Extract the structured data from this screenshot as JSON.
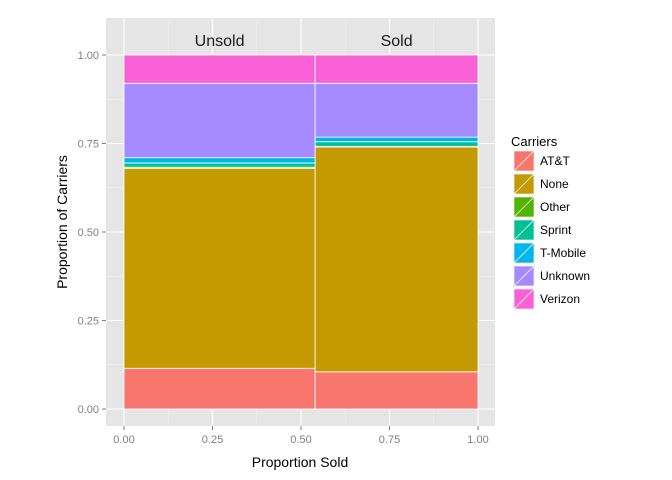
{
  "chart_data": {
    "type": "bar",
    "subtype": "mosaic-stacked-proportion",
    "xlabel": "Proportion Sold",
    "ylabel": "Proportion of Carriers",
    "xlim": [
      0,
      1
    ],
    "ylim": [
      0,
      1
    ],
    "x_ticks": [
      "0.00",
      "0.25",
      "0.50",
      "0.75",
      "1.00"
    ],
    "y_ticks": [
      "0.00",
      "0.25",
      "0.50",
      "0.75",
      "1.00"
    ],
    "grid": true,
    "categories": [
      "Unsold",
      "Sold"
    ],
    "category_widths": [
      0.54,
      0.46
    ],
    "series": [
      {
        "name": "AT&T",
        "color": "#F8766D",
        "values": [
          0.115,
          0.105
        ]
      },
      {
        "name": "None",
        "color": "#C49A00",
        "values": [
          0.565,
          0.635
        ]
      },
      {
        "name": "Other",
        "color": "#53B400",
        "values": [
          0.003,
          0.002
        ]
      },
      {
        "name": "Sprint",
        "color": "#00C094",
        "values": [
          0.012,
          0.013
        ]
      },
      {
        "name": "T-Mobile",
        "color": "#00B6EB",
        "values": [
          0.015,
          0.013
        ]
      },
      {
        "name": "Unknown",
        "color": "#A58AFF",
        "values": [
          0.21,
          0.152
        ]
      },
      {
        "name": "Verizon",
        "color": "#FB61D7",
        "values": [
          0.08,
          0.08
        ]
      }
    ],
    "legend": {
      "title": "Carriers",
      "position": "right"
    }
  }
}
